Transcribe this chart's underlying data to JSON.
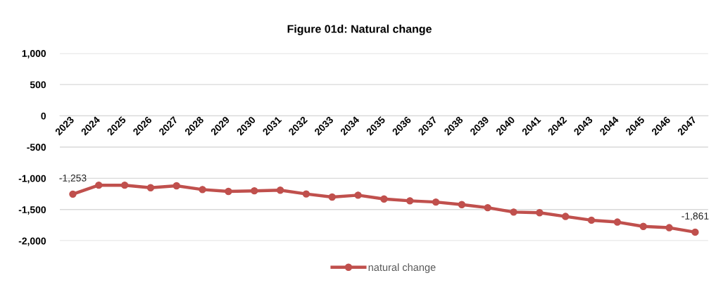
{
  "chart_data": {
    "type": "line",
    "title": "Figure 01d: Natural change",
    "categories": [
      "2023",
      "2024",
      "2025",
      "2026",
      "2027",
      "2028",
      "2029",
      "2030",
      "2031",
      "2032",
      "2033",
      "2034",
      "2035",
      "2036",
      "2037",
      "2038",
      "2039",
      "2040",
      "2041",
      "2042",
      "2043",
      "2044",
      "2045",
      "2046",
      "2047"
    ],
    "series": [
      {
        "name": "natural change",
        "color": "#c0504d",
        "values": [
          -1253,
          -1110,
          -1110,
          -1150,
          -1120,
          -1180,
          -1210,
          -1200,
          -1190,
          -1250,
          -1300,
          -1270,
          -1330,
          -1360,
          -1380,
          -1420,
          -1470,
          -1540,
          -1550,
          -1610,
          -1670,
          -1700,
          -1770,
          -1790,
          -1861
        ],
        "value_labels": [
          "-1,253",
          null,
          null,
          null,
          null,
          null,
          null,
          null,
          null,
          null,
          null,
          null,
          null,
          null,
          null,
          null,
          null,
          null,
          null,
          null,
          null,
          null,
          null,
          null,
          "-1,861"
        ]
      }
    ],
    "ylim": [
      -2000,
      1000
    ],
    "yticks": [
      {
        "value": 1000,
        "label": "1,000"
      },
      500,
      0,
      -500,
      {
        "value": -1000,
        "label": "-1,000"
      },
      {
        "value": -1500,
        "label": "-1,500"
      },
      {
        "value": -2000,
        "label": "-2,000"
      }
    ],
    "grid": "y",
    "legend": "bottom",
    "marker": "circle",
    "line_style": "solid"
  }
}
